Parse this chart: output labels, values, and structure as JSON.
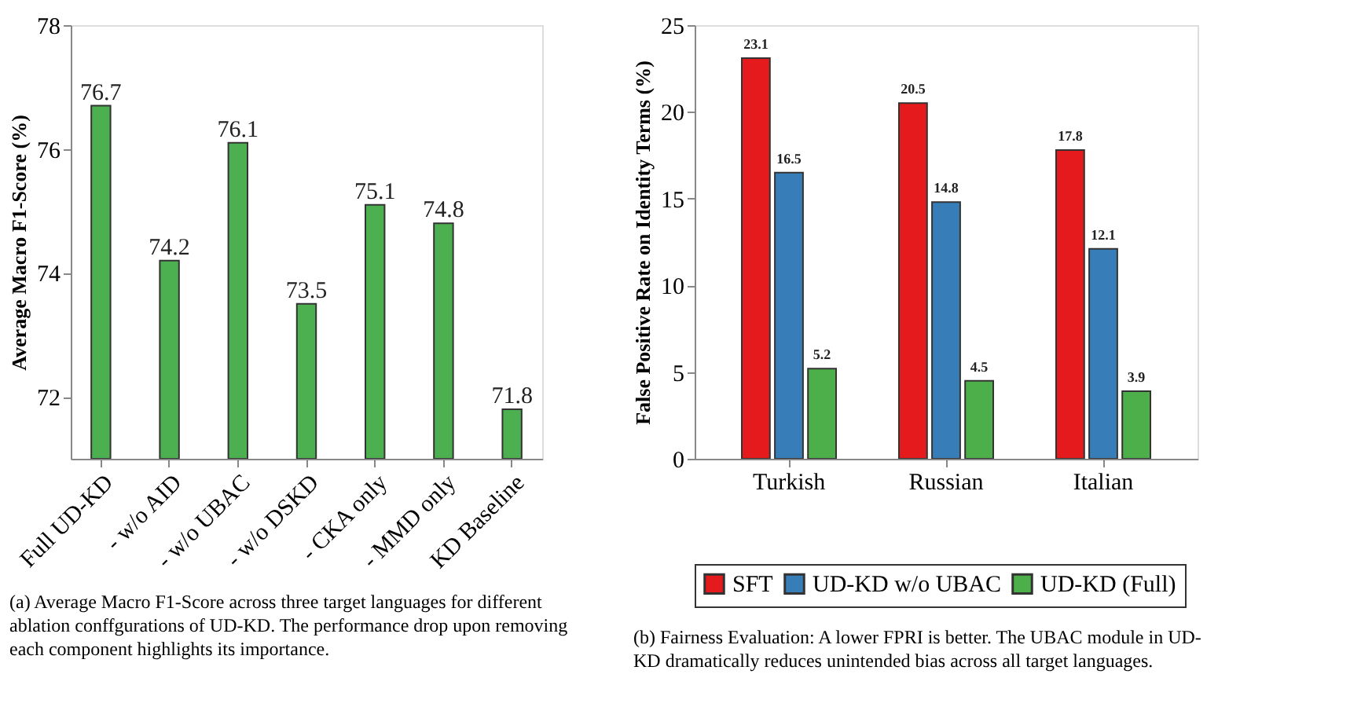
{
  "chart_data": [
    {
      "type": "bar",
      "categories": [
        "Full UD-KD",
        "- w/o AID",
        "- w/o UBAC",
        "- w/o DSKD",
        "- CKA only",
        "- MMD only",
        "KD Baseline"
      ],
      "values": [
        76.7,
        74.2,
        76.1,
        73.5,
        75.1,
        74.8,
        71.8
      ],
      "color": "#4caf50",
      "ylabel": "Average Macro F1-Score (%)",
      "ylim": [
        71,
        78
      ],
      "yticks": [
        72,
        74,
        76,
        78
      ],
      "data_labels": true,
      "grid": false,
      "legend": false,
      "annotations": [
        "(a) Average Macro F1-Score across three target languages for different ablation conffgurations of UD-KD. The performance drop upon removing each component highlights its importance."
      ]
    },
    {
      "type": "bar",
      "categories": [
        "Turkish",
        "Russian",
        "Italian"
      ],
      "series": [
        {
          "name": "SFT",
          "color": "#e41a1c",
          "values": [
            23.1,
            20.5,
            17.8
          ]
        },
        {
          "name": "UD-KD w/o UBAC",
          "color": "#377eb8",
          "values": [
            16.5,
            14.8,
            12.1
          ]
        },
        {
          "name": "UD-KD (Full)",
          "color": "#4daf4a",
          "values": [
            5.2,
            4.5,
            3.9
          ]
        }
      ],
      "ylabel": "False Positive Rate on Identity Terms (%)",
      "ylim": [
        0,
        25
      ],
      "yticks": [
        0,
        5,
        10,
        15,
        20,
        25
      ],
      "data_labels": true,
      "grid": false,
      "legend": "bottom",
      "annotations": [
        "(b) Fairness Evaluation: A lower FPRI is better. The UBAC module in UD-KD dramatically reduces unintended bias across all target languages."
      ]
    }
  ]
}
